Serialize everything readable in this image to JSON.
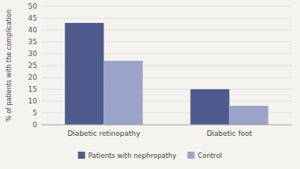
{
  "chart_data": {
    "type": "bar",
    "categories": [
      "Diabetic retinopathy",
      "Diabetic foot"
    ],
    "series": [
      {
        "name": "Patients with nephropathy",
        "color": "#4f5b8c",
        "values": [
          43,
          15
        ]
      },
      {
        "name": "Control",
        "color": "#9ba4c8",
        "values": [
          27,
          8
        ]
      }
    ],
    "ylabel": "% of patients with the complication",
    "ylim": [
      0,
      50
    ],
    "yticks": [
      0,
      5,
      10,
      15,
      20,
      25,
      30,
      35,
      40,
      45,
      50
    ],
    "grid": true,
    "legend": "bottom"
  }
}
